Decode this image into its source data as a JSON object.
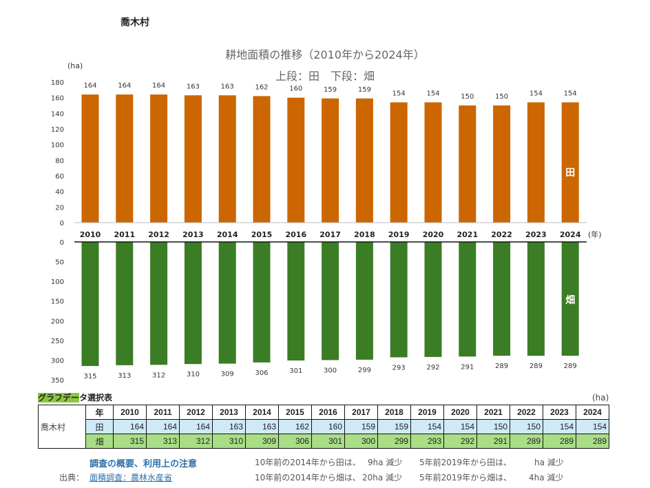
{
  "village": "喬木村",
  "chart_data": {
    "type": "bar",
    "title": "耕地面積の推移（2010年から2024年）",
    "subtitle": "上段：田　下段：畑",
    "ylabel": "(ha)",
    "xlabel": "(年)",
    "categories": [
      "2010",
      "2011",
      "2012",
      "2013",
      "2014",
      "2015",
      "2016",
      "2017",
      "2018",
      "2019",
      "2020",
      "2021",
      "2022",
      "2023",
      "2024"
    ],
    "series": [
      {
        "name": "田",
        "color": "#cc6600",
        "values": [
          164,
          164,
          164,
          163,
          163,
          162,
          160,
          159,
          159,
          154,
          154,
          150,
          150,
          154,
          154
        ],
        "ylim": [
          0,
          180
        ],
        "ticks": [
          0,
          20,
          40,
          60,
          80,
          100,
          120,
          140,
          160,
          180
        ]
      },
      {
        "name": "畑",
        "color": "#3a7d25",
        "values": [
          315,
          313,
          312,
          310,
          309,
          306,
          301,
          300,
          299,
          293,
          292,
          291,
          289,
          289,
          289
        ],
        "ylim": [
          0,
          350
        ],
        "ticks": [
          0,
          50,
          100,
          150,
          200,
          250,
          300,
          350
        ],
        "inverted": true
      }
    ]
  },
  "table": {
    "title_highlight": "グラフデー",
    "title_rest": "タ選択表",
    "unit": "(ha)",
    "village": "喬木村",
    "year_label": "年",
    "rows": [
      {
        "label": "田"
      },
      {
        "label": "畑"
      }
    ]
  },
  "notes": {
    "link1": "調査の概要、利用上の注意",
    "source_label": "出典：",
    "link2": "面積調査：農林水産省",
    "n1a": "10年前の2014年から田は、",
    "n1b": "9ha 減少",
    "n1c": "5年前2019年から田は、",
    "n1d": "ha 減少",
    "n2a": "10年前の2014年から畑は、",
    "n2b": "20ha 減少",
    "n2c": "5年前2019年から畑は、",
    "n2d": "4ha 減少"
  }
}
